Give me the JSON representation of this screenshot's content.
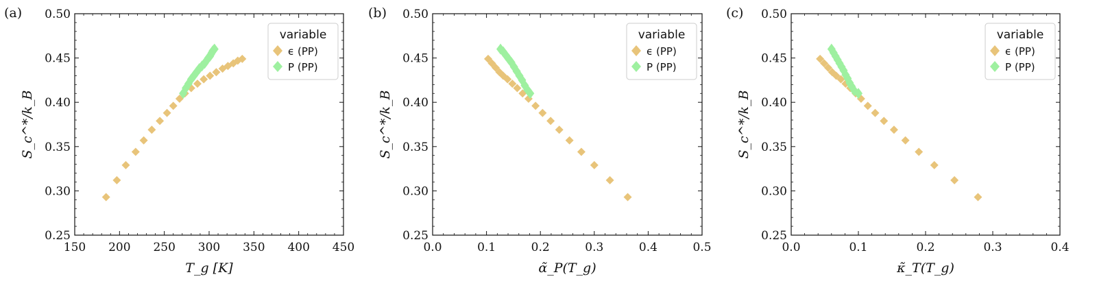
{
  "chart_data": [
    {
      "type": "scatter",
      "panel_label": "(a)",
      "xlabel": "T_g [K]",
      "ylabel": "S_c^*/k_B",
      "xlim": [
        150,
        450
      ],
      "ylim": [
        0.25,
        0.5
      ],
      "xticks": [
        150,
        200,
        250,
        300,
        350,
        400,
        450
      ],
      "xtick_labels": [
        "150",
        "200",
        "250",
        "300",
        "350",
        "400",
        "450"
      ],
      "yticks": [
        0.25,
        0.3,
        0.35,
        0.4,
        0.45,
        0.5
      ],
      "ytick_labels": [
        "0.25",
        "0.30",
        "0.35",
        "0.40",
        "0.45",
        "0.50"
      ],
      "legend": {
        "title": "variable",
        "position": "top-right",
        "entries": [
          {
            "label": "ϵ (PP)",
            "color": "#e8c47a"
          },
          {
            "label": "P (PP)",
            "color": "#9ef0a0"
          }
        ]
      },
      "series": [
        {
          "name": "ϵ (PP)",
          "color": "#e8c47a",
          "points": [
            [
              185,
              0.293
            ],
            [
              197,
              0.312
            ],
            [
              207,
              0.329
            ],
            [
              218,
              0.344
            ],
            [
              227,
              0.357
            ],
            [
              236,
              0.369
            ],
            [
              245,
              0.379
            ],
            [
              253,
              0.388
            ],
            [
              260,
              0.396
            ],
            [
              267,
              0.404
            ],
            [
              273,
              0.41
            ],
            [
              280,
              0.416
            ],
            [
              287,
              0.421
            ],
            [
              294,
              0.426
            ],
            [
              301,
              0.43
            ],
            [
              308,
              0.434
            ],
            [
              315,
              0.438
            ],
            [
              321,
              0.441
            ],
            [
              327,
              0.444
            ],
            [
              332,
              0.447
            ],
            [
              337,
              0.449
            ]
          ]
        },
        {
          "name": "P (PP)",
          "color": "#9ef0a0",
          "points": [
            [
              271,
              0.41
            ],
            [
              274,
              0.416
            ],
            [
              277,
              0.421
            ],
            [
              280,
              0.426
            ],
            [
              283,
              0.43
            ],
            [
              286,
              0.434
            ],
            [
              289,
              0.438
            ],
            [
              292,
              0.441
            ],
            [
              295,
              0.444
            ],
            [
              297,
              0.447
            ],
            [
              299,
              0.45
            ],
            [
              301,
              0.452
            ],
            [
              302,
              0.454
            ],
            [
              303,
              0.456
            ],
            [
              304,
              0.458
            ],
            [
              305,
              0.459
            ],
            [
              306,
              0.46
            ]
          ]
        }
      ]
    },
    {
      "type": "scatter",
      "panel_label": "(b)",
      "xlabel": "α̃_P(T_g)",
      "ylabel": "S_c^*/k_B",
      "xlim": [
        0.0,
        0.5
      ],
      "ylim": [
        0.25,
        0.5
      ],
      "xticks": [
        0.0,
        0.1,
        0.2,
        0.3,
        0.4,
        0.5
      ],
      "xtick_labels": [
        "0.0",
        "0.1",
        "0.2",
        "0.3",
        "0.4",
        "0.5"
      ],
      "yticks": [
        0.25,
        0.3,
        0.35,
        0.4,
        0.45,
        0.5
      ],
      "ytick_labels": [
        "0.25",
        "0.30",
        "0.35",
        "0.40",
        "0.45",
        "0.50"
      ],
      "legend": {
        "title": "variable",
        "position": "top-right",
        "entries": [
          {
            "label": "ϵ (PP)",
            "color": "#e8c47a"
          },
          {
            "label": "P (PP)",
            "color": "#9ef0a0"
          }
        ]
      },
      "series": [
        {
          "name": "ϵ (PP)",
          "color": "#e8c47a",
          "points": [
            [
              0.103,
              0.449
            ],
            [
              0.11,
              0.444
            ],
            [
              0.117,
              0.439
            ],
            [
              0.124,
              0.434
            ],
            [
              0.131,
              0.43
            ],
            [
              0.139,
              0.426
            ],
            [
              0.148,
              0.421
            ],
            [
              0.157,
              0.416
            ],
            [
              0.167,
              0.41
            ],
            [
              0.178,
              0.404
            ],
            [
              0.191,
              0.396
            ],
            [
              0.204,
              0.388
            ],
            [
              0.219,
              0.379
            ],
            [
              0.235,
              0.369
            ],
            [
              0.254,
              0.357
            ],
            [
              0.276,
              0.344
            ],
            [
              0.3,
              0.329
            ],
            [
              0.329,
              0.312
            ],
            [
              0.362,
              0.293
            ]
          ]
        },
        {
          "name": "P (PP)",
          "color": "#9ef0a0",
          "points": [
            [
              0.126,
              0.46
            ],
            [
              0.131,
              0.457
            ],
            [
              0.136,
              0.453
            ],
            [
              0.141,
              0.449
            ],
            [
              0.146,
              0.445
            ],
            [
              0.151,
              0.44
            ],
            [
              0.156,
              0.435
            ],
            [
              0.161,
              0.43
            ],
            [
              0.166,
              0.425
            ],
            [
              0.171,
              0.419
            ],
            [
              0.176,
              0.414
            ],
            [
              0.181,
              0.41
            ]
          ]
        }
      ]
    },
    {
      "type": "scatter",
      "panel_label": "(c)",
      "xlabel": "κ̃_T(T_g)",
      "ylabel": "S_c^*/k_B",
      "xlim": [
        0.0,
        0.4
      ],
      "ylim": [
        0.25,
        0.5
      ],
      "xticks": [
        0.0,
        0.1,
        0.2,
        0.3,
        0.4
      ],
      "xtick_labels": [
        "0.0",
        "0.1",
        "0.2",
        "0.3",
        "0.4"
      ],
      "yticks": [
        0.25,
        0.3,
        0.35,
        0.4,
        0.45,
        0.5
      ],
      "ytick_labels": [
        "0.25",
        "0.30",
        "0.35",
        "0.40",
        "0.45",
        "0.50"
      ],
      "legend": {
        "title": "variable",
        "position": "top-right",
        "entries": [
          {
            "label": "ϵ (PP)",
            "color": "#e8c47a"
          },
          {
            "label": "P (PP)",
            "color": "#9ef0a0"
          }
        ]
      },
      "series": [
        {
          "name": "ϵ (PP)",
          "color": "#e8c47a",
          "points": [
            [
              0.043,
              0.449
            ],
            [
              0.049,
              0.444
            ],
            [
              0.055,
              0.439
            ],
            [
              0.061,
              0.434
            ],
            [
              0.067,
              0.43
            ],
            [
              0.074,
              0.426
            ],
            [
              0.081,
              0.421
            ],
            [
              0.088,
              0.416
            ],
            [
              0.096,
              0.41
            ],
            [
              0.104,
              0.404
            ],
            [
              0.114,
              0.396
            ],
            [
              0.125,
              0.388
            ],
            [
              0.138,
              0.379
            ],
            [
              0.153,
              0.369
            ],
            [
              0.17,
              0.357
            ],
            [
              0.19,
              0.344
            ],
            [
              0.213,
              0.329
            ],
            [
              0.243,
              0.312
            ],
            [
              0.278,
              0.293
            ]
          ]
        },
        {
          "name": "P (PP)",
          "color": "#9ef0a0",
          "points": [
            [
              0.06,
              0.46
            ],
            [
              0.063,
              0.456
            ],
            [
              0.066,
              0.452
            ],
            [
              0.069,
              0.448
            ],
            [
              0.072,
              0.444
            ],
            [
              0.075,
              0.44
            ],
            [
              0.078,
              0.436
            ],
            [
              0.081,
              0.431
            ],
            [
              0.084,
              0.427
            ],
            [
              0.087,
              0.422
            ],
            [
              0.09,
              0.418
            ],
            [
              0.094,
              0.413
            ],
            [
              0.1,
              0.41
            ]
          ]
        }
      ]
    }
  ]
}
